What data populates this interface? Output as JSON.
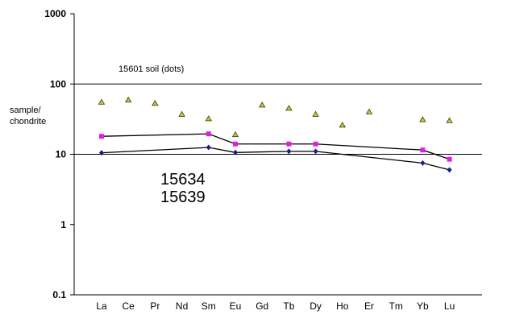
{
  "chart_data": {
    "type": "line",
    "title": "",
    "ylabel_lines": [
      "sample/",
      "chondrite"
    ],
    "xlabel": "",
    "yscale": "log",
    "ylim": [
      0.1,
      1000
    ],
    "y_ticks": [
      0.1,
      1,
      10,
      100,
      1000
    ],
    "y_tick_labels": [
      "0.1",
      "1",
      "10",
      "100",
      "1000"
    ],
    "grid_y_lines": [
      100,
      10
    ],
    "categories": [
      "La",
      "Ce",
      "Pr",
      "Nd",
      "Sm",
      "Eu",
      "Gd",
      "Tb",
      "Dy",
      "Ho",
      "Er",
      "Tm",
      "Yb",
      "Lu"
    ],
    "series": [
      {
        "name": "15601 soil (dots)",
        "style": "triangles",
        "color": "#c8c832",
        "points": [
          {
            "x": "La",
            "y": 55
          },
          {
            "x": "Ce",
            "y": 59
          },
          {
            "x": "Pr",
            "y": 53
          },
          {
            "x": "Nd",
            "y": 37
          },
          {
            "x": "Sm",
            "y": 32
          },
          {
            "x": "Eu",
            "y": 19
          },
          {
            "x": "Gd",
            "y": 50
          },
          {
            "x": "Tb",
            "y": 45
          },
          {
            "x": "Dy",
            "y": 37
          },
          {
            "x": "Ho",
            "y": 26
          },
          {
            "x": "Er",
            "y": 40
          },
          {
            "x": "Yb",
            "y": 31
          },
          {
            "x": "Lu",
            "y": 30
          }
        ]
      },
      {
        "name": "15634",
        "style": "line-square",
        "color": "#e020e0",
        "points": [
          {
            "x": "La",
            "y": 18
          },
          {
            "x": "Sm",
            "y": 19.5
          },
          {
            "x": "Eu",
            "y": 14
          },
          {
            "x": "Tb",
            "y": 14
          },
          {
            "x": "Dy",
            "y": 14
          },
          {
            "x": "Yb",
            "y": 11.5
          },
          {
            "x": "Lu",
            "y": 8.5
          }
        ]
      },
      {
        "name": "15639",
        "style": "line-diamond",
        "color": "#1a1a8c",
        "points": [
          {
            "x": "La",
            "y": 10.5
          },
          {
            "x": "Sm",
            "y": 12.5
          },
          {
            "x": "Eu",
            "y": 10.6
          },
          {
            "x": "Tb",
            "y": 11
          },
          {
            "x": "Dy",
            "y": 11
          },
          {
            "x": "Yb",
            "y": 7.5
          },
          {
            "x": "Lu",
            "y": 6
          }
        ]
      }
    ],
    "annotations": {
      "soil_label": "15601 soil (dots)",
      "label_15634": "15634",
      "label_15639": "15639"
    }
  }
}
